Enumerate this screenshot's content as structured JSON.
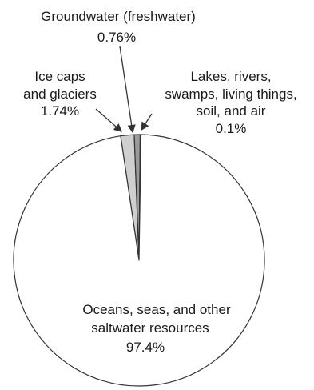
{
  "chart_data": {
    "type": "pie",
    "title": "",
    "slices": [
      {
        "label_lines": [
          "Oceans, seas, and other",
          "saltwater resources"
        ],
        "value_label": "97.4%",
        "value": 97.4,
        "fill": "#ffffff"
      },
      {
        "label_lines": [
          "Ice caps",
          "and glaciers"
        ],
        "value_label": "1.74%",
        "value": 1.74,
        "fill": "#cfcfcf"
      },
      {
        "label_lines": [
          "Groundwater (freshwater)"
        ],
        "value_label": "0.76%",
        "value": 0.76,
        "fill": "#9a9a9a"
      },
      {
        "label_lines": [
          "Lakes, rivers,",
          "swamps, living things,",
          "soil, and air"
        ],
        "value_label": "0.1%",
        "value": 0.1,
        "fill": "#3a3a3a"
      }
    ]
  },
  "colors": {
    "stroke": "#333333",
    "text": "#1a1a1a"
  }
}
